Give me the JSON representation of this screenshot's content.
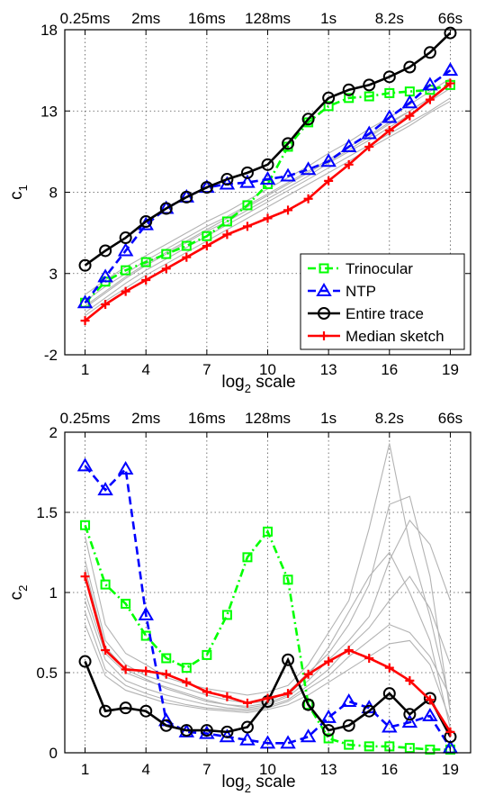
{
  "chart_data": [
    {
      "type": "line",
      "ylabel": "c",
      "ylabel_sub": "1",
      "xlabel": "log",
      "xlabel_sub": "2",
      "xlabel_suffix": " scale",
      "xlim": [
        0,
        20
      ],
      "ylim": [
        -2,
        18
      ],
      "xticks": [
        1,
        4,
        7,
        10,
        13,
        16,
        19
      ],
      "yticks": [
        -2,
        3,
        8,
        13,
        18
      ],
      "top_tick_labels": [
        "0.25ms",
        "2ms",
        "16ms",
        "128ms",
        "1s",
        "8.2s",
        "66s"
      ],
      "grid": true,
      "legend_position": "bottom-right",
      "series": [
        {
          "name": "Trinocular",
          "color": "#00ff00",
          "dash": "dashdot",
          "marker": "square",
          "x": [
            1,
            2,
            3,
            4,
            5,
            6,
            7,
            8,
            9,
            10,
            11,
            12,
            13,
            14,
            15,
            16,
            17,
            18,
            19
          ],
          "values": [
            1.2,
            2.5,
            3.2,
            3.7,
            4.2,
            4.7,
            5.3,
            6.2,
            7.2,
            8.5,
            10.8,
            12.3,
            13.3,
            13.8,
            13.9,
            14.1,
            14.2,
            14.3,
            14.6
          ]
        },
        {
          "name": "NTP",
          "color": "#0000ff",
          "dash": "dashed",
          "marker": "triangle",
          "x": [
            1,
            2,
            3,
            4,
            5,
            6,
            7,
            8,
            9,
            10,
            11,
            12,
            13,
            14,
            15,
            16,
            17,
            18,
            19
          ],
          "values": [
            1.2,
            2.8,
            4.4,
            6.0,
            7.0,
            7.7,
            8.3,
            8.5,
            8.6,
            8.8,
            9.0,
            9.4,
            9.9,
            10.8,
            11.6,
            12.6,
            13.5,
            14.6,
            15.5
          ]
        },
        {
          "name": "Entire trace",
          "color": "#000000",
          "dash": "solid",
          "marker": "circle",
          "x": [
            1,
            2,
            3,
            4,
            5,
            6,
            7,
            8,
            9,
            10,
            11,
            12,
            13,
            14,
            15,
            16,
            17,
            18,
            19
          ],
          "values": [
            3.5,
            4.4,
            5.2,
            6.2,
            7.0,
            7.7,
            8.3,
            8.8,
            9.2,
            9.7,
            11.0,
            12.5,
            13.8,
            14.3,
            14.6,
            15.1,
            15.7,
            16.6,
            17.8
          ]
        },
        {
          "name": "Median sketch",
          "color": "#ff0000",
          "dash": "solid",
          "marker": "plus",
          "x": [
            1,
            2,
            3,
            4,
            5,
            6,
            7,
            8,
            9,
            10,
            11,
            12,
            13,
            14,
            15,
            16,
            17,
            18,
            19
          ],
          "values": [
            0.1,
            1.1,
            1.9,
            2.6,
            3.3,
            4.0,
            4.7,
            5.4,
            5.9,
            6.4,
            6.9,
            7.6,
            8.7,
            9.7,
            10.8,
            11.8,
            12.7,
            13.7,
            14.7
          ]
        }
      ],
      "background_series": [
        {
          "x": [
            1,
            2,
            3,
            4,
            5,
            6,
            7,
            8,
            9,
            10,
            11,
            12,
            13,
            14,
            15,
            16,
            17,
            18,
            19
          ],
          "values": [
            0.6,
            1.5,
            2.4,
            3.2,
            3.9,
            4.6,
            5.3,
            6.0,
            6.7,
            7.4,
            8.1,
            8.8,
            9.5,
            10.2,
            10.9,
            11.6,
            12.3,
            13.0,
            13.8
          ]
        },
        {
          "x": [
            1,
            2,
            3,
            4,
            5,
            6,
            7,
            8,
            9,
            10,
            11,
            12,
            13,
            14,
            15,
            16,
            17,
            18,
            19
          ],
          "values": [
            0.9,
            1.8,
            2.7,
            3.5,
            4.2,
            4.9,
            5.6,
            6.2,
            6.9,
            7.6,
            8.3,
            9.0,
            9.8,
            10.5,
            11.2,
            12.0,
            12.8,
            13.6,
            14.4
          ]
        },
        {
          "x": [
            1,
            2,
            3,
            4,
            5,
            6,
            7,
            8,
            9,
            10,
            11,
            12,
            13,
            14,
            15,
            16,
            17,
            18,
            19
          ],
          "values": [
            1.3,
            2.2,
            3.0,
            3.8,
            4.5,
            5.2,
            5.9,
            6.5,
            7.2,
            7.9,
            8.6,
            9.3,
            10.0,
            10.8,
            11.5,
            12.3,
            13.0,
            13.8,
            14.6
          ]
        },
        {
          "x": [
            1,
            2,
            3,
            4,
            5,
            6,
            7,
            8,
            9,
            10,
            11,
            12,
            13,
            14,
            15,
            16,
            17,
            18,
            19
          ],
          "values": [
            1.7,
            2.6,
            3.4,
            4.1,
            4.8,
            5.5,
            6.2,
            6.8,
            7.5,
            8.2,
            8.9,
            9.6,
            10.4,
            11.1,
            11.9,
            12.6,
            13.4,
            14.2,
            15.0
          ]
        },
        {
          "x": [
            1,
            2,
            3,
            4,
            5,
            6,
            7,
            8,
            9,
            10,
            11,
            12,
            13,
            14,
            15,
            16,
            17,
            18,
            19
          ],
          "values": [
            0.4,
            1.3,
            2.1,
            2.9,
            3.6,
            4.3,
            5.0,
            5.7,
            6.4,
            7.1,
            7.8,
            8.5,
            9.2,
            9.9,
            10.7,
            11.4,
            12.1,
            12.9,
            13.6
          ]
        },
        {
          "x": [
            1,
            2,
            3,
            4,
            5,
            6,
            7,
            8,
            9,
            10,
            11,
            12,
            13,
            14,
            15,
            16,
            17,
            18,
            19
          ],
          "values": [
            1.0,
            1.9,
            2.8,
            3.6,
            4.3,
            5.0,
            5.7,
            6.4,
            7.1,
            7.8,
            8.5,
            9.2,
            9.9,
            10.6,
            11.4,
            12.2,
            13.0,
            13.8,
            14.7
          ]
        }
      ]
    },
    {
      "type": "line",
      "ylabel": "c",
      "ylabel_sub": "2",
      "xlabel": "log",
      "xlabel_sub": "2",
      "xlabel_suffix": " scale",
      "xlim": [
        0,
        20
      ],
      "ylim": [
        0,
        2
      ],
      "xticks": [
        1,
        4,
        7,
        10,
        13,
        16,
        19
      ],
      "yticks": [
        0,
        0.5,
        1,
        1.5,
        2
      ],
      "ytick_labels": [
        "0",
        "0.5",
        "1",
        "1.5",
        "2"
      ],
      "top_tick_labels": [
        "0.25ms",
        "2ms",
        "16ms",
        "128ms",
        "1s",
        "8.2s",
        "66s"
      ],
      "grid": true,
      "series": [
        {
          "name": "Trinocular",
          "color": "#00ff00",
          "dash": "dashdot",
          "marker": "square",
          "x": [
            1,
            2,
            3,
            4,
            5,
            6,
            7,
            8,
            9,
            10,
            11,
            12,
            13,
            14,
            15,
            16,
            17,
            18,
            19
          ],
          "values": [
            1.42,
            1.05,
            0.93,
            0.73,
            0.59,
            0.53,
            0.61,
            0.86,
            1.22,
            1.38,
            1.08,
            0.3,
            0.09,
            0.05,
            0.04,
            0.04,
            0.03,
            0.02,
            0.02
          ]
        },
        {
          "name": "NTP",
          "color": "#0000ff",
          "dash": "dashed",
          "marker": "triangle",
          "x": [
            1,
            2,
            3,
            4,
            5,
            6,
            7,
            8,
            9,
            10,
            11,
            12,
            13,
            14,
            15,
            16,
            17,
            18,
            19
          ],
          "values": [
            1.79,
            1.64,
            1.77,
            0.86,
            0.2,
            0.13,
            0.12,
            0.1,
            0.08,
            0.06,
            0.06,
            0.1,
            0.22,
            0.32,
            0.28,
            0.16,
            0.19,
            0.23,
            0.03
          ]
        },
        {
          "name": "Entire trace",
          "color": "#000000",
          "dash": "solid",
          "marker": "circle",
          "x": [
            1,
            2,
            3,
            4,
            5,
            6,
            7,
            8,
            9,
            10,
            11,
            12,
            13,
            14,
            15,
            16,
            17,
            18,
            19
          ],
          "values": [
            0.57,
            0.26,
            0.28,
            0.26,
            0.17,
            0.14,
            0.14,
            0.13,
            0.16,
            0.32,
            0.58,
            0.3,
            0.14,
            0.17,
            0.26,
            0.37,
            0.24,
            0.34,
            0.1
          ]
        },
        {
          "name": "Median sketch",
          "color": "#ff0000",
          "dash": "solid",
          "marker": "plus",
          "x": [
            1,
            2,
            3,
            4,
            5,
            6,
            7,
            8,
            9,
            10,
            11,
            12,
            13,
            14,
            15,
            16,
            17,
            18,
            19
          ],
          "values": [
            1.1,
            0.64,
            0.52,
            0.51,
            0.49,
            0.44,
            0.38,
            0.35,
            0.31,
            0.34,
            0.37,
            0.49,
            0.57,
            0.64,
            0.59,
            0.53,
            0.45,
            0.33,
            0.13
          ]
        }
      ],
      "background_series": [
        {
          "x": [
            1,
            2,
            3,
            4,
            5,
            6,
            7,
            8,
            9,
            10,
            11,
            12,
            13,
            14,
            15,
            16,
            17,
            18,
            19
          ],
          "values": [
            1.35,
            0.8,
            0.62,
            0.55,
            0.47,
            0.43,
            0.4,
            0.38,
            0.36,
            0.38,
            0.42,
            0.55,
            0.75,
            0.95,
            1.4,
            1.93,
            1.3,
            0.85,
            0.3
          ]
        },
        {
          "x": [
            1,
            2,
            3,
            4,
            5,
            6,
            7,
            8,
            9,
            10,
            11,
            12,
            13,
            14,
            15,
            16,
            17,
            18,
            19
          ],
          "values": [
            1.2,
            0.7,
            0.55,
            0.48,
            0.44,
            0.4,
            0.36,
            0.33,
            0.31,
            0.32,
            0.38,
            0.5,
            0.62,
            0.8,
            1.05,
            1.55,
            1.6,
            1.1,
            0.25
          ]
        },
        {
          "x": [
            1,
            2,
            3,
            4,
            5,
            6,
            7,
            8,
            9,
            10,
            11,
            12,
            13,
            14,
            15,
            16,
            17,
            18,
            19
          ],
          "values": [
            1.0,
            0.62,
            0.5,
            0.45,
            0.41,
            0.37,
            0.33,
            0.3,
            0.28,
            0.3,
            0.35,
            0.45,
            0.58,
            0.7,
            0.85,
            1.2,
            1.45,
            1.3,
            0.95
          ]
        },
        {
          "x": [
            1,
            2,
            3,
            4,
            5,
            6,
            7,
            8,
            9,
            10,
            11,
            12,
            13,
            14,
            15,
            16,
            17,
            18,
            19
          ],
          "values": [
            0.95,
            0.58,
            0.45,
            0.4,
            0.36,
            0.33,
            0.3,
            0.28,
            0.27,
            0.29,
            0.33,
            0.42,
            0.52,
            0.66,
            0.78,
            0.95,
            1.1,
            0.9,
            0.55
          ]
        },
        {
          "x": [
            1,
            2,
            3,
            4,
            5,
            6,
            7,
            8,
            9,
            10,
            11,
            12,
            13,
            14,
            15,
            16,
            17,
            18,
            19
          ],
          "values": [
            0.88,
            0.52,
            0.42,
            0.37,
            0.33,
            0.3,
            0.28,
            0.27,
            0.26,
            0.28,
            0.32,
            0.4,
            0.48,
            0.6,
            0.7,
            0.8,
            0.75,
            0.6,
            0.35
          ]
        },
        {
          "x": [
            1,
            2,
            3,
            4,
            5,
            6,
            7,
            8,
            9,
            10,
            11,
            12,
            13,
            14,
            15,
            16,
            17,
            18,
            19
          ],
          "values": [
            0.8,
            0.48,
            0.39,
            0.35,
            0.31,
            0.29,
            0.27,
            0.26,
            0.25,
            0.27,
            0.3,
            0.36,
            0.44,
            0.52,
            0.6,
            0.68,
            0.7,
            0.55,
            0.2
          ]
        },
        {
          "x": [
            1,
            2,
            3,
            4,
            5,
            6,
            7,
            8,
            9,
            10,
            11,
            12,
            13,
            14,
            15,
            16,
            17,
            18,
            19
          ],
          "values": [
            1.15,
            0.66,
            0.52,
            0.46,
            0.4,
            0.36,
            0.32,
            0.3,
            0.29,
            0.31,
            0.36,
            0.48,
            0.66,
            0.88,
            1.1,
            1.25,
            1.0,
            0.7,
            0.15
          ]
        }
      ]
    }
  ]
}
